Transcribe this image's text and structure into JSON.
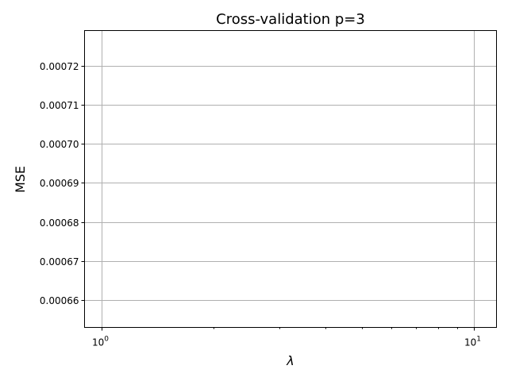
{
  "chart_data": {
    "type": "line",
    "title": "Cross-validation p=3",
    "xlabel": "λ",
    "ylabel": "MSE",
    "xscale": "log",
    "xlim": [
      0.9,
      11.5
    ],
    "ylim": [
      0.000653,
      0.000729
    ],
    "x_ticks": [
      {
        "value": 1,
        "base": "10",
        "exp": "0"
      },
      {
        "value": 10,
        "base": "10",
        "exp": "1"
      }
    ],
    "y_ticks": [
      {
        "value": 0.00066,
        "label": "0.00066"
      },
      {
        "value": 0.00067,
        "label": "0.00067"
      },
      {
        "value": 0.00068,
        "label": "0.00068"
      },
      {
        "value": 0.00069,
        "label": "0.00069"
      },
      {
        "value": 0.0007,
        "label": "0.00070"
      },
      {
        "value": 0.00071,
        "label": "0.00071"
      },
      {
        "value": 0.00072,
        "label": "0.00072"
      }
    ],
    "grid": true,
    "series": []
  }
}
